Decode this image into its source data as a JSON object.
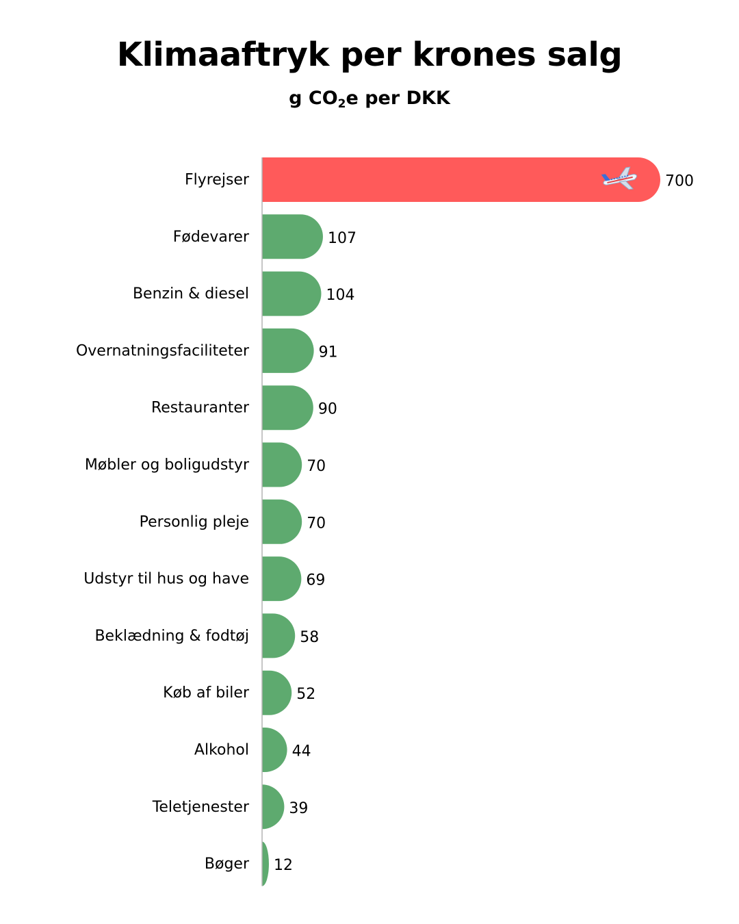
{
  "title": "Klimaaftryk per krones salg",
  "subtitle": {
    "prefix": "g CO",
    "sub": "2",
    "suffix": "e per DKK"
  },
  "colors": {
    "highlight": "#ff5a5a",
    "default": "#5eaa6f",
    "axis": "#b4b4b4"
  },
  "chart_data": {
    "type": "bar",
    "orientation": "horizontal",
    "categories": [
      "Flyrejser",
      "Fødevarer",
      "Benzin & diesel",
      "Overnatningsfaciliteter",
      "Restauranter",
      "Møbler og boligudstyr",
      "Personlig pleje",
      "Udstyr til hus og have",
      "Beklædning & fodtøj",
      "Køb af biler",
      "Alkohol",
      "Teletjenester",
      "Bøger"
    ],
    "values": [
      700,
      107,
      104,
      91,
      90,
      70,
      70,
      69,
      58,
      52,
      44,
      39,
      12
    ],
    "highlight_index": 0,
    "highlight_icon": "airplane-icon",
    "xlim": [
      0,
      700
    ],
    "grid": false,
    "legend": "none"
  }
}
